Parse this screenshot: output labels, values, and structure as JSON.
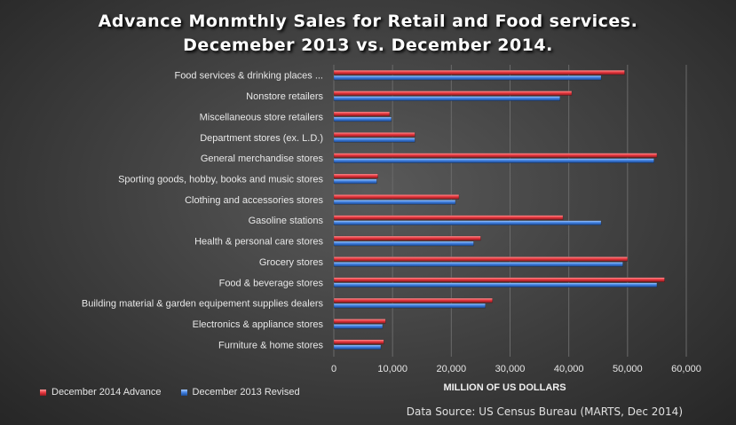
{
  "title_line1": "Advance Monmthly Sales for Retail and Food services.",
  "title_line2": "Decemeber 2013 vs. December 2014.",
  "source": "Data Source: US Census Bureau (MARTS, Dec 2014)",
  "colors": {
    "series_2014": "#e8373f",
    "series_2013": "#3f7fe0",
    "grid": "#6a6a6a"
  },
  "chart_data": {
    "type": "bar",
    "orientation": "horizontal",
    "xlabel": "MILLION OF US DOLLARS",
    "xlim": [
      0,
      60000
    ],
    "xticks": [
      0,
      10000,
      20000,
      30000,
      40000,
      50000,
      60000
    ],
    "xtick_labels": [
      "0",
      "10,000",
      "20,000",
      "30,000",
      "40,000",
      "50,000",
      "60,000"
    ],
    "grid": "vertical",
    "legend_position": "bottom-left",
    "categories": [
      "Food services & drinking places ...",
      "Nonstore retailers",
      "Miscellaneous store retailers",
      "Department stores (ex. L.D.)",
      "General merchandise stores",
      "Sporting goods, hobby, books and music stores",
      "Clothing and accessories stores",
      "Gasoline stations",
      "Health & personal care stores",
      "Grocery stores",
      "Food & beverage stores",
      "Building material & garden equipement  supplies dealers",
      "Electronics & appliance stores",
      "Furniture & home stores"
    ],
    "series": [
      {
        "name": "December 2014 Advance",
        "values": [
          49500,
          40500,
          9500,
          13800,
          55000,
          7500,
          21300,
          39000,
          25000,
          50000,
          56300,
          27000,
          8800,
          8500
        ]
      },
      {
        "name": "December 2013 Revised",
        "values": [
          45500,
          38500,
          9800,
          13800,
          54500,
          7300,
          20700,
          45500,
          23800,
          49200,
          55000,
          25800,
          8300,
          8000
        ]
      }
    ]
  }
}
